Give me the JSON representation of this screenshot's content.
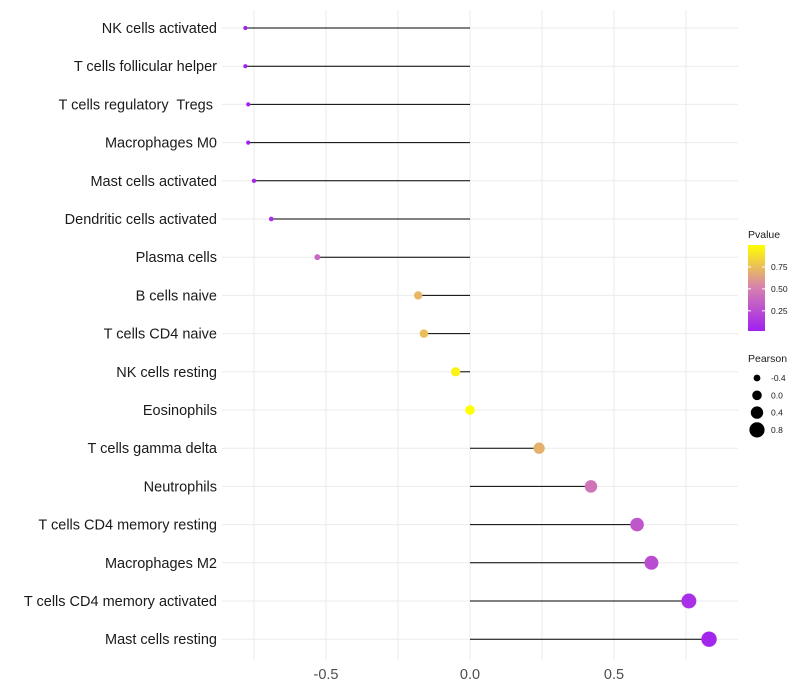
{
  "chart_data": {
    "type": "scatter",
    "subtype": "lollipop",
    "title": "",
    "xlabel": "",
    "ylabel": "",
    "xlim": [
      -0.9,
      0.85
    ],
    "x_ticks": [
      -0.5,
      0.0,
      0.5
    ],
    "x_tick_labels": [
      "-0.5",
      "0.0",
      "0.5"
    ],
    "grid": true,
    "baseline": 0,
    "points": [
      {
        "category": "NK cells activated",
        "pearson": -0.78,
        "pvalue": 0.02
      },
      {
        "category": "T cells follicular helper",
        "pearson": -0.78,
        "pvalue": 0.02
      },
      {
        "category": "T cells regulatory  Tregs ",
        "pearson": -0.77,
        "pvalue": 0.03
      },
      {
        "category": "Macrophages M0",
        "pearson": -0.77,
        "pvalue": 0.03
      },
      {
        "category": "Mast cells activated",
        "pearson": -0.75,
        "pvalue": 0.05
      },
      {
        "category": "Dendritic cells activated",
        "pearson": -0.69,
        "pvalue": 0.1
      },
      {
        "category": "Plasma cells",
        "pearson": -0.53,
        "pvalue": 0.38
      },
      {
        "category": "B cells naive",
        "pearson": -0.18,
        "pvalue": 0.72
      },
      {
        "category": "T cells CD4 naive",
        "pearson": -0.16,
        "pvalue": 0.75
      },
      {
        "category": "NK cells resting",
        "pearson": -0.05,
        "pvalue": 0.95
      },
      {
        "category": "Eosinophils",
        "pearson": 0.0,
        "pvalue": 1.0
      },
      {
        "category": "T cells gamma delta",
        "pearson": 0.24,
        "pvalue": 0.7
      },
      {
        "category": "Neutrophils",
        "pearson": 0.42,
        "pvalue": 0.45
      },
      {
        "category": "T cells CD4 memory resting",
        "pearson": 0.58,
        "pvalue": 0.3
      },
      {
        "category": "Macrophages M2",
        "pearson": 0.63,
        "pvalue": 0.25
      },
      {
        "category": "T cells CD4 memory activated",
        "pearson": 0.76,
        "pvalue": 0.1
      },
      {
        "category": "Mast cells resting",
        "pearson": 0.83,
        "pvalue": 0.05
      }
    ],
    "legend": {
      "placement": "right",
      "color": {
        "title": "Pvalue",
        "low_color": "#a020f0",
        "high_color": "#ffff00",
        "range": [
          0.02,
          1.0
        ],
        "breaks": [
          0.75,
          0.5,
          0.25
        ],
        "break_labels": [
          "0.75",
          "0.50",
          "0.25"
        ]
      },
      "size": {
        "title": "Pearson",
        "breaks": [
          -0.4,
          0.0,
          0.4,
          0.8
        ],
        "break_labels": [
          "-0.4",
          "0.0",
          "0.4",
          "0.8"
        ]
      }
    }
  }
}
